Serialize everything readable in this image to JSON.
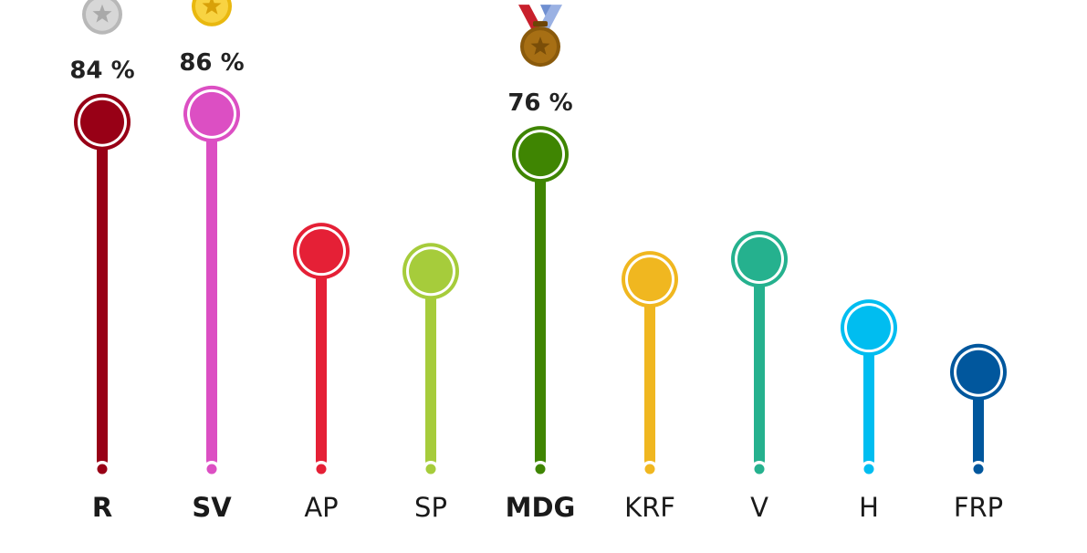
{
  "chart_data": {
    "type": "bar",
    "categories": [
      "R",
      "SV",
      "AP",
      "SP",
      "MDG",
      "KRF",
      "V",
      "H",
      "FRP"
    ],
    "values": [
      84,
      86,
      52,
      47,
      76,
      45,
      50,
      33,
      22
    ],
    "colors": [
      "#980016",
      "#dc4fc3",
      "#e52036",
      "#a6cc3b",
      "#3f8502",
      "#f0b720",
      "#25b18e",
      "#00bdf0",
      "#01579d"
    ],
    "bold_categories": [
      "R",
      "SV",
      "MDG"
    ],
    "labels": [
      {
        "category": "R",
        "text": "84 %",
        "medal": "silver-medal-icon"
      },
      {
        "category": "SV",
        "text": "86 %",
        "medal": "gold-medal-icon"
      },
      {
        "category": "MDG",
        "text": "76 %",
        "medal": "bronze-medal-icon"
      }
    ],
    "ylim": [
      0,
      100
    ],
    "grid": false
  }
}
